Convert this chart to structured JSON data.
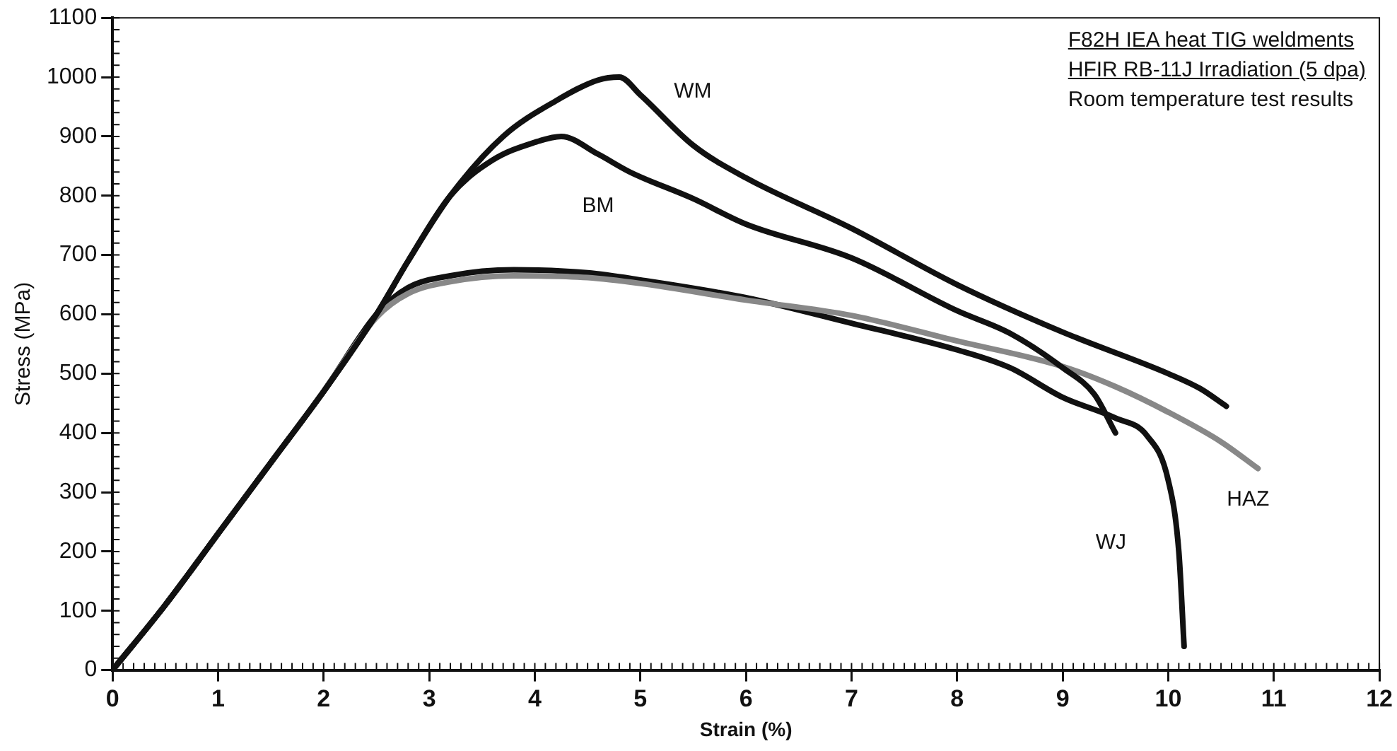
{
  "chart_data": {
    "type": "line",
    "title": "F82H IEA heat TIG weldments",
    "subtitle": "HFIR RB-11J Irradiation (5 dpa)",
    "xlabel": "Strain (%)",
    "ylabel": "Stress (MPa)",
    "annotations": [
      "Room temperature test results",
      {
        "text": "WM",
        "x": 5.0,
        "y": 970
      },
      {
        "text": "BM",
        "x": 4.6,
        "y": 870
      },
      {
        "text": "HAZ",
        "x": 10.85,
        "y": 340
      },
      {
        "text": "WJ",
        "x": 10.1,
        "y": 200
      }
    ],
    "xlim": [
      0,
      12
    ],
    "xticks": [
      0,
      1,
      2,
      3,
      4,
      5,
      6,
      7,
      8,
      9,
      10,
      11,
      12
    ],
    "ylim": [
      0,
      1100
    ],
    "yticks": [
      0,
      100,
      200,
      300,
      400,
      500,
      600,
      700,
      800,
      900,
      1000,
      1100
    ],
    "grid": false,
    "legend": false,
    "marker": "none",
    "line_style": "solid",
    "series": [
      {
        "color": "#111111",
        "x": [
          0,
          0.5,
          1,
          1.5,
          2,
          2.5,
          2.8,
          3.2,
          3.7,
          4.2,
          4.6,
          4.8,
          5.0,
          5.5,
          6,
          7,
          8,
          9,
          10,
          10.3,
          10.55
        ],
        "values": [
          0,
          110,
          230,
          350,
          470,
          600,
          690,
          800,
          900,
          960,
          995,
          1000,
          970,
          885,
          830,
          745,
          650,
          570,
          500,
          475,
          445
        ]
      },
      {
        "color": "#111111",
        "x": [
          0,
          0.5,
          1,
          1.5,
          2,
          2.5,
          2.8,
          3.2,
          3.6,
          4.0,
          4.25,
          4.6,
          4.9,
          5.5,
          6,
          7,
          8,
          8.5,
          9,
          9.3,
          9.5
        ],
        "values": [
          0,
          110,
          230,
          350,
          470,
          600,
          690,
          800,
          860,
          890,
          900,
          870,
          840,
          795,
          752,
          695,
          606,
          568,
          510,
          465,
          400
        ]
      },
      {
        "color": "#888888",
        "x": [
          0,
          0.5,
          1,
          1.5,
          2,
          2.5,
          2.8,
          3.2,
          3.8,
          4.5,
          5,
          6,
          7,
          8,
          9,
          9.5,
          10,
          10.5,
          10.85
        ],
        "values": [
          0,
          110,
          230,
          350,
          470,
          595,
          635,
          655,
          665,
          662,
          652,
          624,
          598,
          555,
          512,
          478,
          435,
          385,
          340
        ]
      },
      {
        "color": "#111111",
        "x": [
          0,
          0.5,
          1,
          1.5,
          2,
          2.5,
          2.8,
          3.2,
          3.8,
          4.5,
          5,
          6,
          7,
          8,
          8.5,
          9,
          9.5,
          9.8,
          10.0,
          10.1,
          10.15
        ],
        "values": [
          0,
          110,
          230,
          350,
          470,
          600,
          645,
          665,
          675,
          670,
          658,
          628,
          585,
          540,
          510,
          460,
          425,
          395,
          320,
          200,
          40
        ]
      }
    ]
  }
}
